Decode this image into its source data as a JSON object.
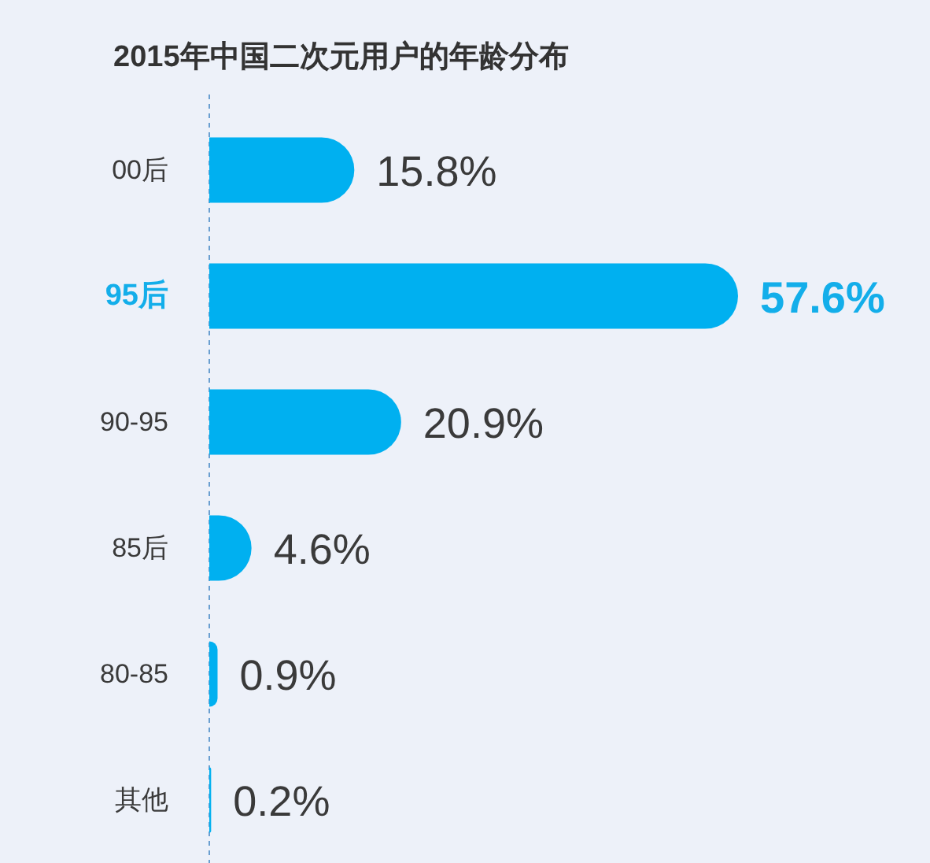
{
  "chart_data": {
    "type": "bar",
    "title": "2015年中国二次元用户的年龄分布",
    "orientation": "horizontal",
    "categories": [
      "00后",
      "95后",
      "90-95",
      "85后",
      "80-85",
      "其他"
    ],
    "values": [
      15.8,
      57.6,
      20.9,
      4.6,
      0.9,
      0.2
    ],
    "value_labels": [
      "15.8%",
      "57.6%",
      "20.9%",
      "4.6%",
      "0.9%",
      "0.2%"
    ],
    "color": "#00b0f0"
  }
}
